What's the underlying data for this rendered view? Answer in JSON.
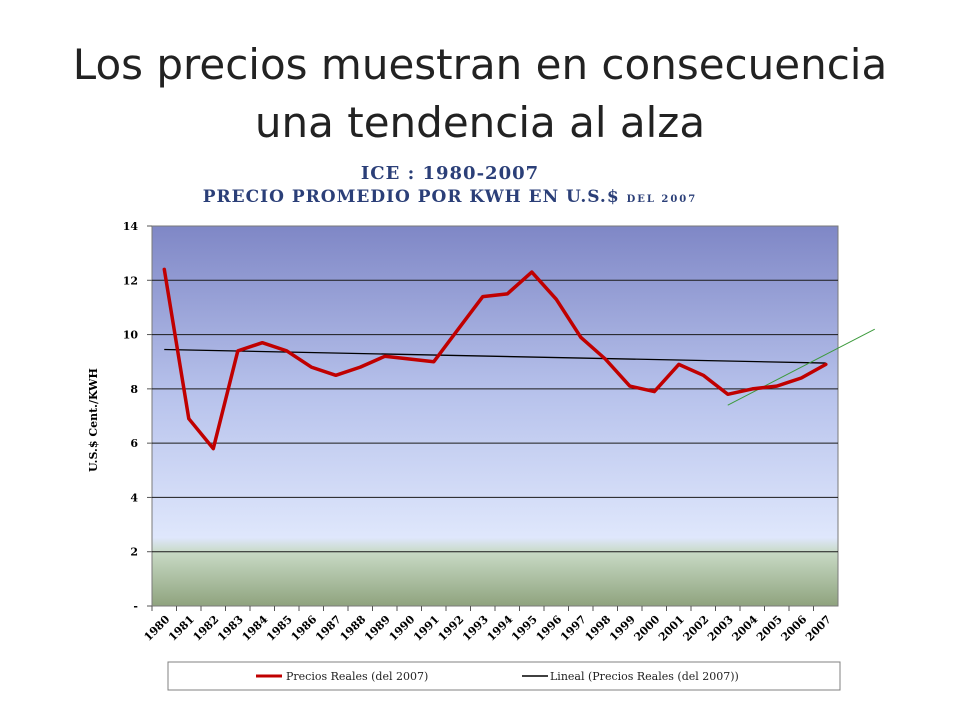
{
  "slide": {
    "title_line1": "Los precios muestran en consecuencia",
    "title_line2": "una tendencia al alza"
  },
  "chart_data": {
    "type": "line",
    "title": "ICE : 1980-2007",
    "subtitle": "PRECIO PROMEDIO POR KWH EN U.S.$",
    "subtitle_suffix": "DEL 2007",
    "ylabel": "U.S.$ Cent./KWH",
    "xlabel": "",
    "ylim": [
      0,
      14
    ],
    "yticks": [
      0,
      2,
      4,
      6,
      8,
      10,
      12,
      14
    ],
    "ytick_labels": [
      "-",
      "2",
      "4",
      "6",
      "8",
      "10",
      "12",
      "14"
    ],
    "x": [
      "1980",
      "1981",
      "1982",
      "1983",
      "1984",
      "1985",
      "1986",
      "1987",
      "1988",
      "1989",
      "1990",
      "1991",
      "1992",
      "1993",
      "1994",
      "1995",
      "1996",
      "1997",
      "1998",
      "1999",
      "2000",
      "2001",
      "2002",
      "2003",
      "2004",
      "2005",
      "2006",
      "2007"
    ],
    "grid": true,
    "legend_position": "bottom",
    "series": [
      {
        "name": "Precios Reales (del 2007)",
        "color": "#c00000",
        "values": [
          12.4,
          6.9,
          5.8,
          9.4,
          9.7,
          9.4,
          8.8,
          8.5,
          8.8,
          9.2,
          9.1,
          9.0,
          10.2,
          11.4,
          11.5,
          12.3,
          11.3,
          9.9,
          9.1,
          8.1,
          7.9,
          8.9,
          8.5,
          7.8,
          8.0,
          8.1,
          8.4,
          8.9
        ]
      },
      {
        "name": "Lineal (Precios Reales (del 2007))",
        "color": "#000000",
        "trend": [
          9.45,
          8.95
        ]
      }
    ],
    "annotation_line": {
      "color": "#3c9a3c",
      "from": [
        2003,
        7.4
      ],
      "to": [
        2009,
        10.2
      ]
    }
  }
}
